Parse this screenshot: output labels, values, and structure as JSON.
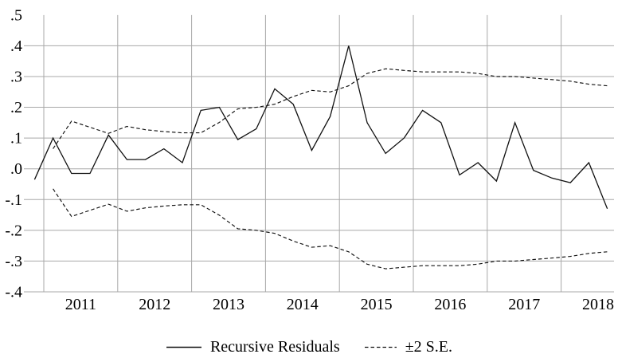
{
  "chart_data": {
    "type": "line",
    "title": "",
    "frequency": "quarterly",
    "x_start": "2010Q4",
    "x_end": "2018Q3",
    "ylim": [
      -0.4,
      0.5
    ],
    "grid": true,
    "legend_position": "bottom",
    "colors": {
      "background": "#ffffff",
      "grid": "#a8a8a8",
      "line": "#111111",
      "text": "#000000"
    },
    "y_axis": {
      "tick_labels": [
        ".5",
        ".4",
        ".3",
        ".2",
        ".1",
        ".0",
        "-.1",
        "-.2",
        "-.3",
        "-.4"
      ],
      "tick_values": [
        0.5,
        0.4,
        0.3,
        0.2,
        0.1,
        0.0,
        -0.1,
        -0.2,
        -0.3,
        -0.4
      ],
      "grid_values": [
        0.4,
        0.3,
        0.2,
        0.1,
        0.0,
        -0.1,
        -0.2,
        -0.3,
        -0.4
      ]
    },
    "x_axis": {
      "tick_labels": [
        "2011",
        "2012",
        "2013",
        "2014",
        "2015",
        "2016",
        "2017",
        "2018"
      ],
      "grid_years": [
        2011,
        2012,
        2013,
        2014,
        2015,
        2016,
        2017,
        2018
      ]
    },
    "series": [
      {
        "name": "Recursive Residuals",
        "style": "solid",
        "start": "2010Q4",
        "values": [
          -0.035,
          0.1,
          -0.015,
          -0.015,
          0.11,
          0.03,
          0.03,
          0.065,
          0.02,
          0.19,
          0.2,
          0.095,
          0.13,
          0.26,
          0.21,
          0.06,
          0.17,
          0.4,
          0.15,
          0.05,
          0.1,
          0.19,
          0.15,
          -0.02,
          0.02,
          -0.04,
          0.15,
          -0.005,
          -0.03,
          -0.045,
          0.02,
          -0.13
        ]
      },
      {
        "name": "+2 S.E.",
        "style": "dashed",
        "start": "2011Q1",
        "values": [
          0.065,
          0.155,
          0.135,
          0.115,
          0.138,
          0.127,
          0.121,
          0.117,
          0.117,
          0.151,
          0.195,
          0.2,
          0.21,
          0.235,
          0.255,
          0.25,
          0.27,
          0.31,
          0.325,
          0.32,
          0.315,
          0.315,
          0.315,
          0.31,
          0.3,
          0.3,
          0.295,
          0.29,
          0.285,
          0.275,
          0.27
        ]
      },
      {
        "name": "-2 S.E.",
        "style": "dashed",
        "start": "2011Q1",
        "values": [
          -0.065,
          -0.155,
          -0.135,
          -0.115,
          -0.138,
          -0.127,
          -0.121,
          -0.117,
          -0.117,
          -0.151,
          -0.195,
          -0.2,
          -0.21,
          -0.235,
          -0.255,
          -0.25,
          -0.27,
          -0.31,
          -0.325,
          -0.32,
          -0.315,
          -0.315,
          -0.315,
          -0.31,
          -0.3,
          -0.3,
          -0.295,
          -0.29,
          -0.285,
          -0.275,
          -0.27
        ]
      }
    ],
    "legend": [
      {
        "label": "Recursive Residuals",
        "style": "solid"
      },
      {
        "label": "±2 S.E.",
        "style": "dashed"
      }
    ]
  }
}
